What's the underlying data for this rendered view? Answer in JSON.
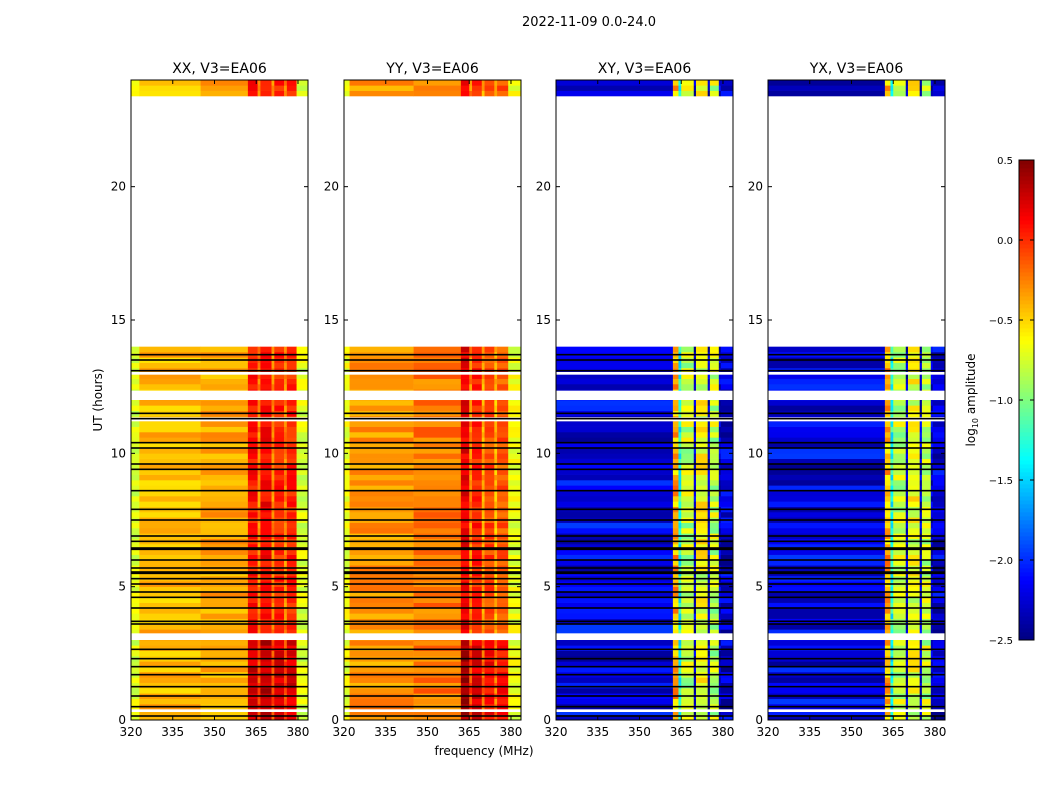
{
  "chart_data": {
    "type": "heatmap",
    "title": "2022-11-09 0.0-24.0",
    "xlabel": "frequency (MHz)",
    "ylabel": "UT (hours)",
    "xlim": [
      320,
      383.6
    ],
    "ylim": [
      0,
      24
    ],
    "xticks": [
      "320",
      "335",
      "350",
      "365",
      "380"
    ],
    "yticks": [
      "0",
      "5",
      "10",
      "15",
      "20"
    ],
    "colorbar": {
      "label": "log10 amplitude",
      "label_main": "log",
      "label_sub": "10",
      "label_rest": " amplitude",
      "range": [
        -2.5,
        0.5
      ],
      "ticks": [
        "0.5",
        "0.0",
        "−0.5",
        "−1.0",
        "−1.5",
        "−2.0",
        "−2.5"
      ],
      "colormap": "jet"
    },
    "data_time_ranges": [
      [
        0,
        14
      ],
      [
        23.4,
        24
      ]
    ],
    "blank_time_ranges": [
      [
        3.0,
        3.25
      ],
      [
        11.2,
        11.35
      ],
      [
        12.0,
        12.35
      ],
      [
        12.95,
        13.05
      ],
      [
        0.3,
        0.4
      ]
    ],
    "flagged_times": [
      0.15,
      0.5,
      0.9,
      1.25,
      1.7,
      2.0,
      2.3,
      2.65,
      3.6,
      3.7,
      4.2,
      4.6,
      4.8,
      5.1,
      5.3,
      5.5,
      5.55,
      5.7,
      6.0,
      6.4,
      6.45,
      6.7,
      6.9,
      7.5,
      7.9,
      8.6,
      9.4,
      9.6,
      10.2,
      10.4,
      11.3,
      11.5,
      13.1,
      13.5,
      13.7
    ],
    "panels": [
      {
        "title": "XX, V3=EA06",
        "segments": [
          [
            320,
            323,
            -0.75
          ],
          [
            323,
            345,
            -0.45
          ],
          [
            345,
            362,
            -0.4
          ],
          [
            362,
            365.5,
            0.05
          ],
          [
            365.5,
            366.5,
            -0.3
          ],
          [
            366.5,
            370.5,
            0.1
          ],
          [
            370.5,
            371.5,
            -0.3
          ],
          [
            371.5,
            375,
            0.0
          ],
          [
            375,
            376,
            -0.3
          ],
          [
            376,
            379.5,
            0.0
          ],
          [
            379.5,
            383.6,
            -0.75
          ]
        ]
      },
      {
        "title": "YY, V3=EA06",
        "segments": [
          [
            320,
            322,
            -0.7
          ],
          [
            322,
            345,
            -0.35
          ],
          [
            345,
            362,
            -0.25
          ],
          [
            362,
            365,
            0.15
          ],
          [
            365,
            366,
            -0.3
          ],
          [
            366,
            369.5,
            0.0
          ],
          [
            369.5,
            370.5,
            -0.4
          ],
          [
            370.5,
            374,
            -0.1
          ],
          [
            374,
            375,
            -0.45
          ],
          [
            375,
            379,
            -0.15
          ],
          [
            379,
            383.6,
            -0.7
          ]
        ]
      },
      {
        "title": "XY, V3=EA06",
        "segments": [
          [
            320,
            362,
            -2.3
          ],
          [
            362,
            364,
            -0.5
          ],
          [
            364,
            365,
            -1.4
          ],
          [
            365,
            369.5,
            -0.9
          ],
          [
            369.5,
            370.3,
            -2.4
          ],
          [
            370.3,
            374.5,
            -0.8
          ],
          [
            374.5,
            375.3,
            -2.4
          ],
          [
            375.3,
            378.5,
            -0.9
          ],
          [
            378.5,
            379.2,
            -2.4
          ],
          [
            379.2,
            383.6,
            -2.35
          ]
        ]
      },
      {
        "title": "YX, V3=EA06",
        "segments": [
          [
            320,
            362,
            -2.3
          ],
          [
            362,
            364,
            -0.5
          ],
          [
            364,
            365,
            -1.4
          ],
          [
            365,
            369.5,
            -0.9
          ],
          [
            369.5,
            370.3,
            -2.4
          ],
          [
            370.3,
            374.5,
            -0.8
          ],
          [
            374.5,
            375.3,
            -2.4
          ],
          [
            375.3,
            378.5,
            -0.9
          ],
          [
            378.5,
            379.2,
            -2.4
          ],
          [
            379.2,
            383.6,
            -2.35
          ]
        ]
      }
    ]
  }
}
